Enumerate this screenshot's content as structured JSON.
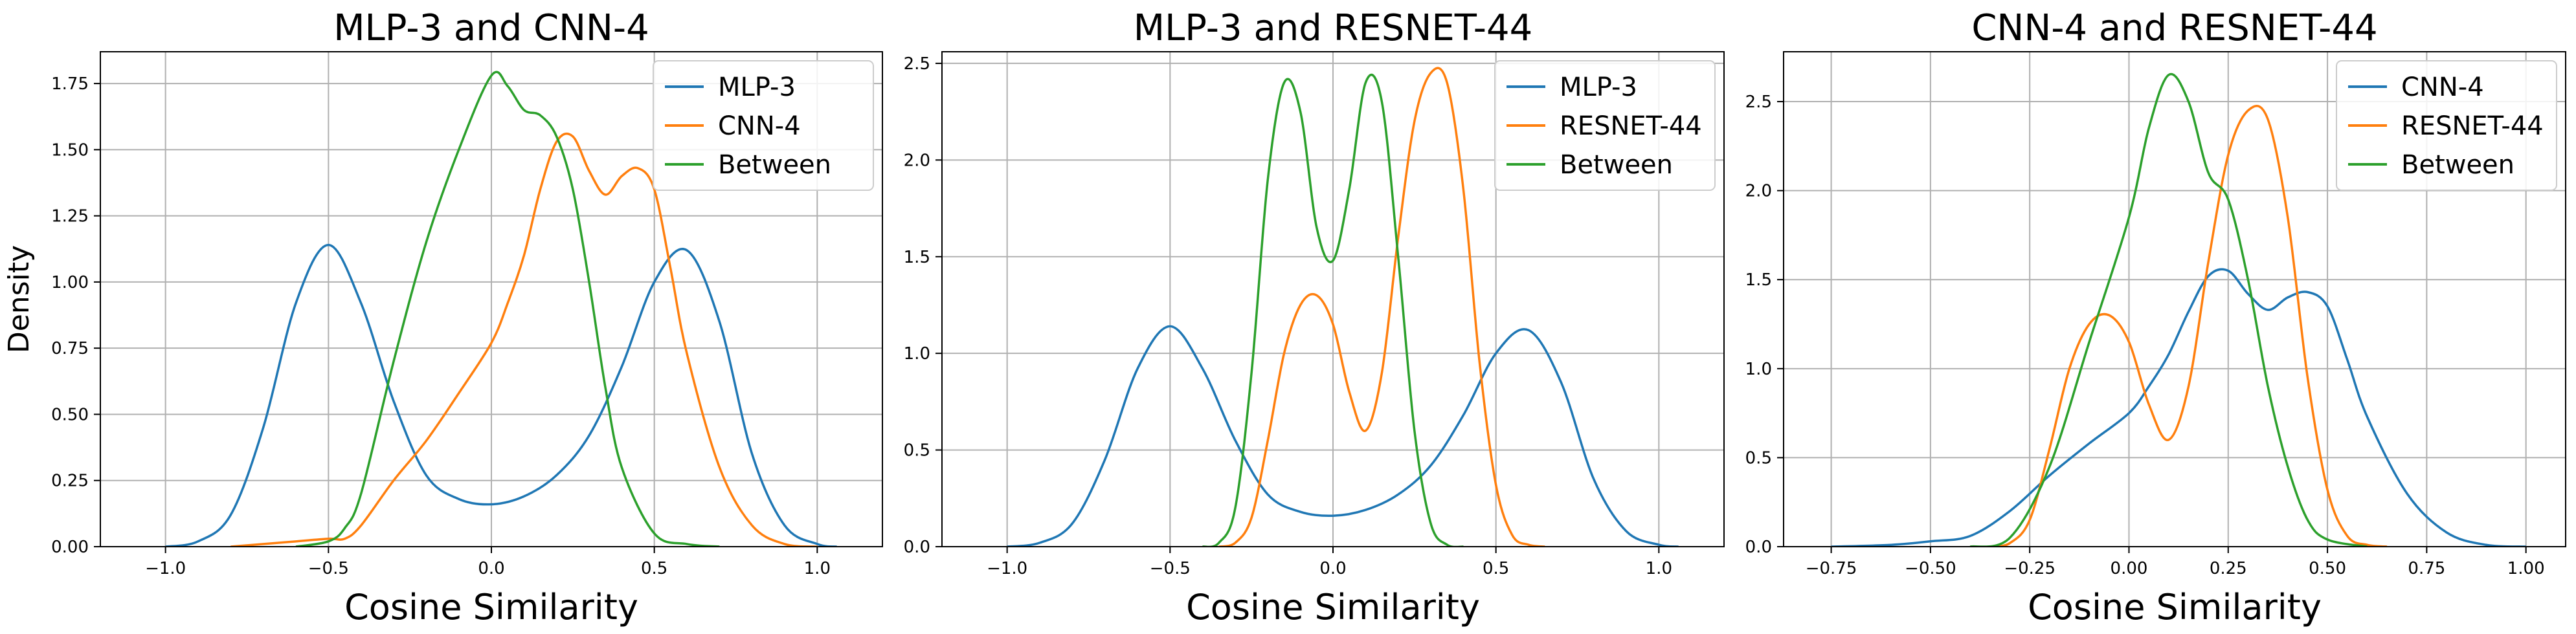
{
  "chart_data": [
    {
      "type": "line",
      "title": "MLP-3 and CNN-4",
      "xlabel": "Cosine Similarity",
      "ylabel": "Density",
      "xlim": [
        -1.2,
        1.2
      ],
      "ylim": [
        0,
        1.87
      ],
      "xticks": [
        "−1.0",
        "−0.5",
        "0.0",
        "0.5",
        "1.0"
      ],
      "xtick_values": [
        -1.0,
        -0.5,
        0.0,
        0.5,
        1.0
      ],
      "yticks": [
        "0.00",
        "0.25",
        "0.50",
        "0.75",
        "1.00",
        "1.25",
        "1.50",
        "1.75"
      ],
      "ytick_values": [
        0.0,
        0.25,
        0.5,
        0.75,
        1.0,
        1.25,
        1.5,
        1.75
      ],
      "grid": true,
      "legend_position": "top-right",
      "series": [
        {
          "name": "MLP-3",
          "color": "#1f77b4",
          "x": [
            -1.0,
            -0.9,
            -0.8,
            -0.7,
            -0.6,
            -0.5,
            -0.4,
            -0.3,
            -0.2,
            -0.1,
            0.0,
            0.1,
            0.2,
            0.3,
            0.4,
            0.5,
            0.6,
            0.7,
            0.8,
            0.9,
            1.0,
            1.06
          ],
          "y": [
            0.0,
            0.02,
            0.12,
            0.45,
            0.92,
            1.14,
            0.92,
            0.55,
            0.27,
            0.18,
            0.16,
            0.19,
            0.27,
            0.42,
            0.68,
            1.0,
            1.12,
            0.85,
            0.35,
            0.08,
            0.01,
            0.0
          ]
        },
        {
          "name": "CNN-4",
          "color": "#ff7f0e",
          "x": [
            -0.8,
            -0.6,
            -0.5,
            -0.45,
            -0.4,
            -0.3,
            -0.2,
            -0.1,
            0.0,
            0.05,
            0.1,
            0.15,
            0.2,
            0.25,
            0.3,
            0.35,
            0.4,
            0.45,
            0.5,
            0.55,
            0.6,
            0.7,
            0.8,
            0.9,
            1.0
          ],
          "y": [
            0.0,
            0.02,
            0.03,
            0.03,
            0.08,
            0.25,
            0.4,
            0.58,
            0.77,
            0.92,
            1.1,
            1.35,
            1.53,
            1.55,
            1.42,
            1.33,
            1.4,
            1.43,
            1.35,
            1.05,
            0.73,
            0.3,
            0.08,
            0.01,
            0.0
          ]
        },
        {
          "name": "Between",
          "color": "#2ca02c",
          "x": [
            -0.6,
            -0.5,
            -0.45,
            -0.4,
            -0.3,
            -0.2,
            -0.1,
            0.0,
            0.05,
            0.1,
            0.15,
            0.2,
            0.25,
            0.3,
            0.35,
            0.4,
            0.5,
            0.6,
            0.7
          ],
          "y": [
            0.0,
            0.02,
            0.07,
            0.2,
            0.7,
            1.15,
            1.5,
            1.78,
            1.74,
            1.65,
            1.63,
            1.55,
            1.35,
            1.0,
            0.6,
            0.3,
            0.05,
            0.01,
            0.0
          ]
        }
      ]
    },
    {
      "type": "line",
      "title": "MLP-3 and RESNET-44",
      "xlabel": "Cosine Similarity",
      "ylabel": "",
      "xlim": [
        -1.2,
        1.2
      ],
      "ylim": [
        0,
        2.56
      ],
      "xticks": [
        "−1.0",
        "−0.5",
        "0.0",
        "0.5",
        "1.0"
      ],
      "xtick_values": [
        -1.0,
        -0.5,
        0.0,
        0.5,
        1.0
      ],
      "yticks": [
        "0.0",
        "0.5",
        "1.0",
        "1.5",
        "2.0",
        "2.5"
      ],
      "ytick_values": [
        0.0,
        0.5,
        1.0,
        1.5,
        2.0,
        2.5
      ],
      "grid": true,
      "legend_position": "top-right",
      "series": [
        {
          "name": "MLP-3",
          "color": "#1f77b4",
          "x": [
            -1.0,
            -0.9,
            -0.8,
            -0.7,
            -0.6,
            -0.5,
            -0.4,
            -0.3,
            -0.2,
            -0.1,
            0.0,
            0.1,
            0.2,
            0.3,
            0.4,
            0.5,
            0.6,
            0.7,
            0.8,
            0.9,
            1.0,
            1.06
          ],
          "y": [
            0.0,
            0.02,
            0.12,
            0.45,
            0.92,
            1.14,
            0.92,
            0.55,
            0.27,
            0.18,
            0.16,
            0.19,
            0.27,
            0.42,
            0.68,
            1.0,
            1.12,
            0.85,
            0.35,
            0.08,
            0.01,
            0.0
          ]
        },
        {
          "name": "RESNET-44",
          "color": "#ff7f0e",
          "x": [
            -0.35,
            -0.3,
            -0.25,
            -0.2,
            -0.15,
            -0.1,
            -0.05,
            0.0,
            0.05,
            0.1,
            0.15,
            0.2,
            0.25,
            0.3,
            0.35,
            0.4,
            0.45,
            0.5,
            0.55,
            0.6,
            0.65
          ],
          "y": [
            0.0,
            0.02,
            0.15,
            0.55,
            1.0,
            1.25,
            1.3,
            1.15,
            0.8,
            0.6,
            0.9,
            1.6,
            2.2,
            2.45,
            2.4,
            1.85,
            0.95,
            0.32,
            0.06,
            0.01,
            0.0
          ]
        },
        {
          "name": "Between",
          "color": "#2ca02c",
          "x": [
            -0.4,
            -0.35,
            -0.3,
            -0.25,
            -0.2,
            -0.15,
            -0.1,
            -0.05,
            0.0,
            0.05,
            0.1,
            0.15,
            0.2,
            0.25,
            0.3,
            0.35,
            0.4
          ],
          "y": [
            0.0,
            0.02,
            0.2,
            0.9,
            1.9,
            2.4,
            2.25,
            1.65,
            1.48,
            1.85,
            2.4,
            2.3,
            1.5,
            0.6,
            0.12,
            0.01,
            0.0
          ]
        }
      ]
    },
    {
      "type": "line",
      "title": "CNN-4 and RESNET-44",
      "xlabel": "Cosine Similarity",
      "ylabel": "",
      "xlim": [
        -0.87,
        1.1
      ],
      "ylim": [
        0,
        2.78
      ],
      "xticks": [
        "−0.75",
        "−0.50",
        "−0.25",
        "0.00",
        "0.25",
        "0.50",
        "0.75",
        "1.00"
      ],
      "xtick_values": [
        -0.75,
        -0.5,
        -0.25,
        0.0,
        0.25,
        0.5,
        0.75,
        1.0
      ],
      "yticks": [
        "0.0",
        "0.5",
        "1.0",
        "1.5",
        "2.0",
        "2.5"
      ],
      "ytick_values": [
        0.0,
        0.5,
        1.0,
        1.5,
        2.0,
        2.5
      ],
      "grid": true,
      "legend_position": "top-right",
      "series": [
        {
          "name": "CNN-4",
          "color": "#1f77b4",
          "x": [
            -0.75,
            -0.6,
            -0.5,
            -0.4,
            -0.3,
            -0.2,
            -0.1,
            0.0,
            0.05,
            0.1,
            0.15,
            0.2,
            0.25,
            0.3,
            0.35,
            0.4,
            0.45,
            0.5,
            0.55,
            0.6,
            0.7,
            0.8,
            0.9,
            1.0
          ],
          "y": [
            0.0,
            0.01,
            0.03,
            0.06,
            0.2,
            0.4,
            0.58,
            0.75,
            0.9,
            1.08,
            1.32,
            1.52,
            1.55,
            1.42,
            1.33,
            1.4,
            1.43,
            1.35,
            1.05,
            0.73,
            0.3,
            0.08,
            0.01,
            0.0
          ]
        },
        {
          "name": "RESNET-44",
          "color": "#ff7f0e",
          "x": [
            -0.35,
            -0.3,
            -0.25,
            -0.2,
            -0.15,
            -0.1,
            -0.05,
            0.0,
            0.05,
            0.1,
            0.15,
            0.2,
            0.25,
            0.3,
            0.35,
            0.4,
            0.45,
            0.5,
            0.55,
            0.6,
            0.65
          ],
          "y": [
            0.0,
            0.02,
            0.15,
            0.55,
            1.0,
            1.25,
            1.3,
            1.15,
            0.8,
            0.6,
            0.9,
            1.6,
            2.2,
            2.45,
            2.4,
            1.85,
            0.95,
            0.32,
            0.06,
            0.01,
            0.0
          ]
        },
        {
          "name": "Between",
          "color": "#2ca02c",
          "x": [
            -0.4,
            -0.3,
            -0.2,
            -0.1,
            0.0,
            0.05,
            0.1,
            0.15,
            0.2,
            0.25,
            0.3,
            0.35,
            0.4,
            0.45,
            0.5,
            0.6
          ],
          "y": [
            0.0,
            0.05,
            0.45,
            1.15,
            1.85,
            2.35,
            2.65,
            2.5,
            2.1,
            1.95,
            1.5,
            0.9,
            0.45,
            0.15,
            0.04,
            0.0
          ]
        }
      ]
    }
  ]
}
